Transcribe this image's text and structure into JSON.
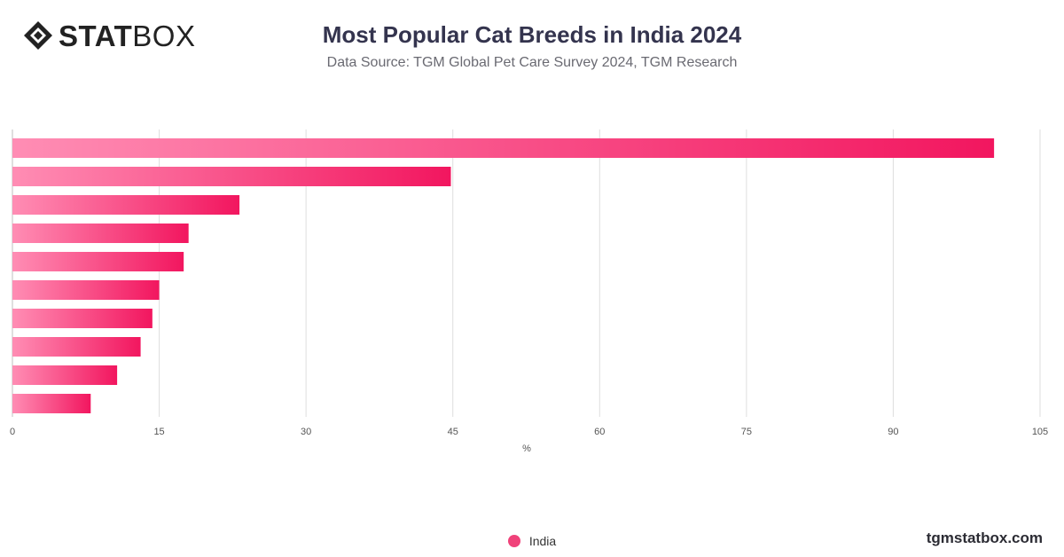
{
  "brand": {
    "logo_bold": "STAT",
    "logo_light": "BOX",
    "footer": "tgmstatbox.com"
  },
  "header": {
    "title": "Most Popular Cat Breeds in India 2024",
    "subtitle": "Data Source: TGM Global Pet Care Survey 2024, TGM Research"
  },
  "colors": {
    "bar_start": "#ff8db4",
    "bar_end": "#f2165f",
    "legend": "#f0427a",
    "grid": "#dedede"
  },
  "chart_data": {
    "type": "bar",
    "orientation": "horizontal",
    "title": "Most Popular Cat Breeds in India 2024",
    "xlabel": "%",
    "xlim": [
      0,
      105
    ],
    "xticks": [
      "0",
      "15",
      "30",
      "45",
      "60",
      "75",
      "90",
      "105"
    ],
    "grid": true,
    "legend_position": "bottom-center",
    "series": [
      {
        "name": "India",
        "values": [
          100.3,
          44.8,
          23.2,
          18.0,
          17.5,
          15.0,
          14.3,
          13.1,
          10.7,
          8.0
        ]
      }
    ]
  }
}
